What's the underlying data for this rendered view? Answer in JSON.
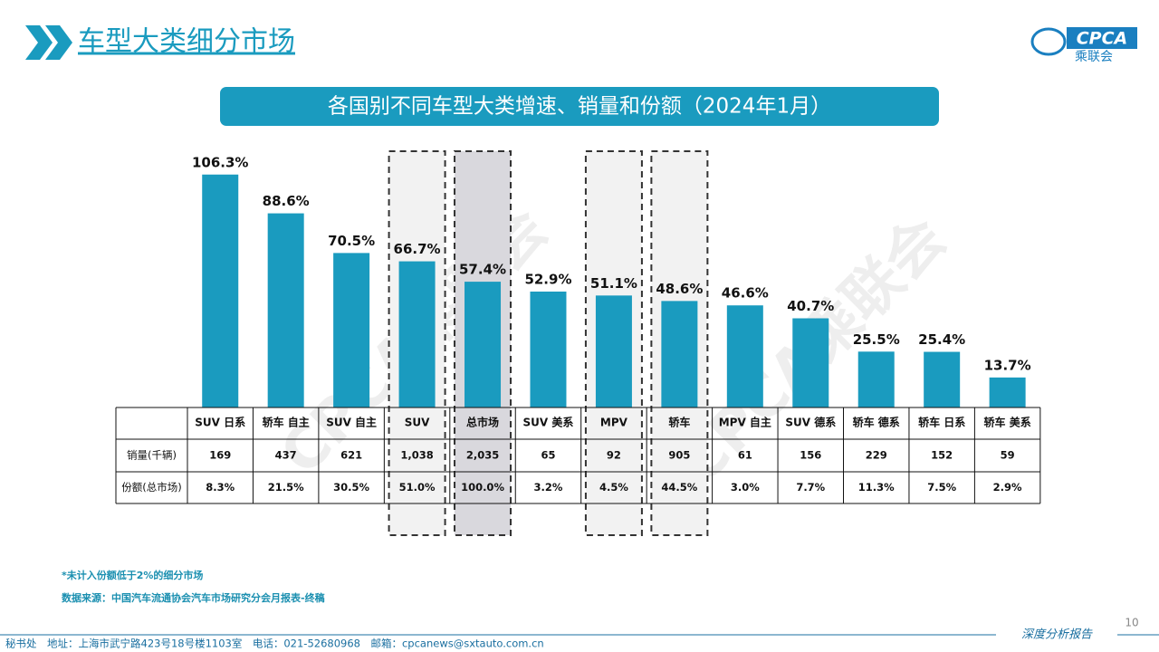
{
  "header": {
    "title": "车型大类细分市场",
    "logo": "CPCA",
    "logo_sub": "乘联会"
  },
  "chart_data": {
    "type": "bar",
    "title": "各国别不同车型大类增速、销量和份额（2024年1月）",
    "categories": [
      "SUV 日系",
      "轿车 自主",
      "SUV 自主",
      "SUV",
      "总市场",
      "SUV 美系",
      "MPV",
      "轿车",
      "MPV 自主",
      "SUV 德系",
      "轿车 德系",
      "轿车 日系",
      "轿车 美系"
    ],
    "values": [
      106.3,
      88.6,
      70.5,
      66.7,
      57.4,
      52.9,
      51.1,
      48.6,
      46.6,
      40.7,
      25.5,
      25.4,
      13.7
    ],
    "value_labels": [
      "106.3%",
      "88.6%",
      "70.5%",
      "66.7%",
      "57.4%",
      "52.9%",
      "51.1%",
      "48.6%",
      "46.6%",
      "40.7%",
      "25.5%",
      "25.4%",
      "13.7%"
    ],
    "color": "#1a9bbf",
    "table": {
      "rows": [
        {
          "label": "销量(千辆)",
          "cells": [
            "169",
            "437",
            "621",
            "1,038",
            "2,035",
            "65",
            "92",
            "905",
            "61",
            "156",
            "229",
            "152",
            "59"
          ]
        },
        {
          "label": "份额(总市场)",
          "cells": [
            "8.3%",
            "21.5%",
            "30.5%",
            "51.0%",
            "100.0%",
            "3.2%",
            "4.5%",
            "44.5%",
            "3.0%",
            "7.7%",
            "11.3%",
            "7.5%",
            "2.9%"
          ]
        }
      ]
    }
  },
  "notes": [
    "*未计入份额低于2%的细分市场",
    "数据来源：中国汽车流通协会汽车市场研究分会月报表-终稿"
  ],
  "footer": {
    "address": "秘书处　地址：上海市武宁路423号18号楼1103室　电话：021-52680968　邮箱：cpcanews@sxtauto.com.cn",
    "tagline": "深度分析报告",
    "page": "10"
  },
  "watermark": "CPCA乘联会"
}
